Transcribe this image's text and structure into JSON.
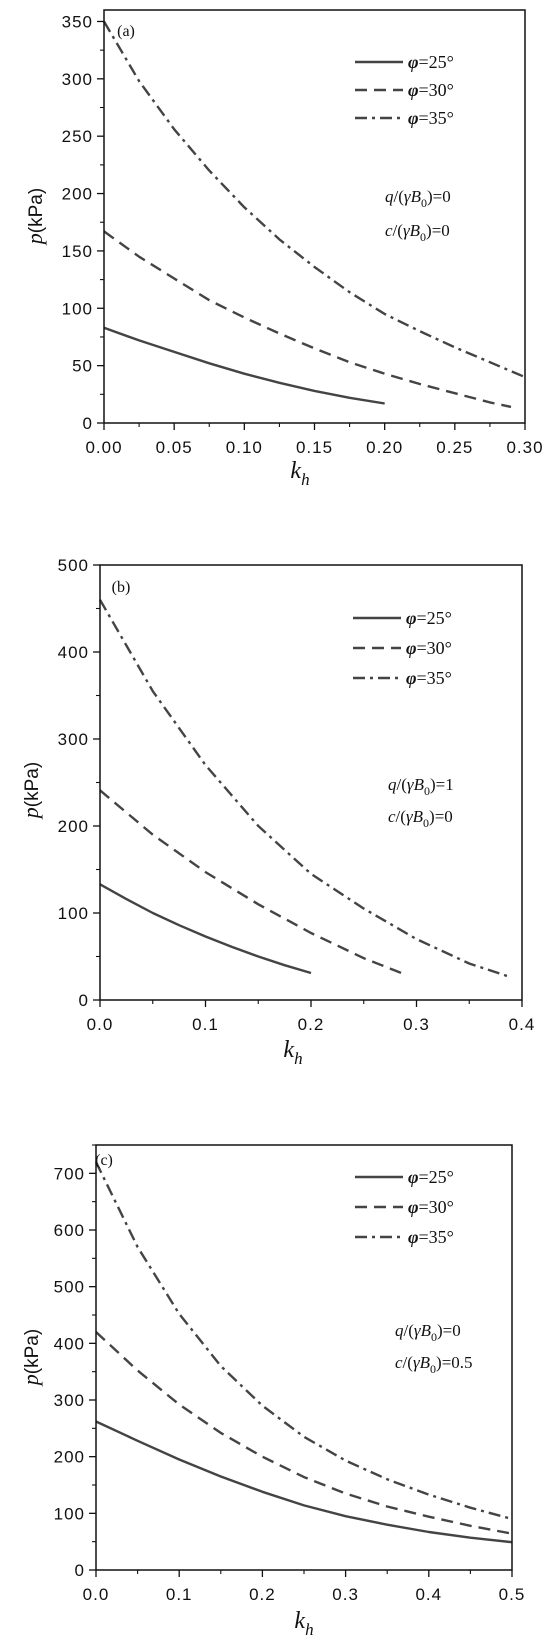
{
  "chart_data": [
    {
      "type": "line",
      "panel_label": "(a)",
      "xlabel": "k_h",
      "ylabel": "p(kPa)",
      "xlim": [
        0,
        0.3
      ],
      "ylim": [
        0,
        360
      ],
      "xticks": [
        0,
        0.05,
        0.1,
        0.15,
        0.2,
        0.25,
        0.3
      ],
      "xtick_labels": [
        "0.00",
        "0.05",
        "0.10",
        "0.15",
        "0.20",
        "0.25",
        "0.30"
      ],
      "yticks": [
        0,
        50,
        100,
        150,
        200,
        250,
        300,
        350
      ],
      "ytick_labels": [
        "0",
        "50",
        "100",
        "150",
        "200",
        "250",
        "300",
        "350"
      ],
      "legend_position": "top-right",
      "annotations": [
        {
          "pre": "q/(",
          "gamma": "γ",
          "B": "B",
          "sub": "0",
          "post": ")=0"
        },
        {
          "pre": "c/(",
          "gamma": "γ",
          "B": "B",
          "sub": "0",
          "post": ")=0"
        }
      ],
      "series": [
        {
          "name": "φ=25°",
          "dash": "solid",
          "x": [
            0,
            0.025,
            0.05,
            0.075,
            0.1,
            0.125,
            0.15,
            0.175,
            0.2
          ],
          "y": [
            83,
            72,
            62,
            52,
            43,
            35,
            28,
            22,
            17
          ]
        },
        {
          "name": "φ=30°",
          "dash": "dashed",
          "x": [
            0,
            0.025,
            0.05,
            0.075,
            0.1,
            0.125,
            0.15,
            0.175,
            0.2,
            0.225,
            0.25,
            0.275,
            0.29
          ],
          "y": [
            167,
            145,
            126,
            107,
            92,
            78,
            65,
            53,
            43,
            34,
            26,
            18,
            14
          ]
        },
        {
          "name": "φ=35°",
          "dash": "dashdot",
          "x": [
            0,
            0.025,
            0.05,
            0.075,
            0.1,
            0.125,
            0.15,
            0.175,
            0.2,
            0.225,
            0.25,
            0.275,
            0.3
          ],
          "y": [
            350,
            298,
            256,
            220,
            188,
            160,
            136,
            114,
            95,
            80,
            66,
            53,
            40
          ]
        }
      ]
    },
    {
      "type": "line",
      "panel_label": "(b)",
      "xlabel": "k_h",
      "ylabel": "p(kPa)",
      "xlim": [
        0,
        0.4
      ],
      "ylim": [
        0,
        500
      ],
      "xticks": [
        0,
        0.1,
        0.2,
        0.3,
        0.4
      ],
      "xtick_labels": [
        "0.0",
        "0.1",
        "0.2",
        "0.3",
        "0.4"
      ],
      "yticks": [
        0,
        100,
        200,
        300,
        400,
        500
      ],
      "ytick_labels": [
        "0",
        "100",
        "200",
        "300",
        "400",
        "500"
      ],
      "legend_position": "top-right",
      "annotations": [
        {
          "pre": "q/(",
          "gamma": "γ",
          "B": "B",
          "sub": "0",
          "post": ")=1"
        },
        {
          "pre": "c/(",
          "gamma": "γ",
          "B": "B",
          "sub": "0",
          "post": ")=0"
        }
      ],
      "series": [
        {
          "name": "φ=25°",
          "dash": "solid",
          "x": [
            0,
            0.025,
            0.05,
            0.075,
            0.1,
            0.125,
            0.15,
            0.175,
            0.2
          ],
          "y": [
            133,
            116,
            100,
            86,
            73,
            61,
            50,
            40,
            31
          ]
        },
        {
          "name": "φ=30°",
          "dash": "dashed",
          "x": [
            0,
            0.05,
            0.1,
            0.15,
            0.2,
            0.25,
            0.29
          ],
          "y": [
            241,
            190,
            147,
            110,
            77,
            48,
            29
          ]
        },
        {
          "name": "φ=35°",
          "dash": "dashdot",
          "x": [
            0,
            0.05,
            0.1,
            0.15,
            0.2,
            0.25,
            0.3,
            0.35,
            0.39
          ],
          "y": [
            460,
            355,
            270,
            200,
            145,
            105,
            70,
            42,
            26
          ]
        }
      ]
    },
    {
      "type": "line",
      "panel_label": "(c)",
      "xlabel": "k_h",
      "ylabel": "p(kPa)",
      "xlim": [
        0,
        0.5
      ],
      "ylim": [
        0,
        750
      ],
      "xticks": [
        0,
        0.1,
        0.2,
        0.3,
        0.4,
        0.5
      ],
      "xtick_labels": [
        "0.0",
        "0.1",
        "0.2",
        "0.3",
        "0.4",
        "0.5"
      ],
      "yticks": [
        0,
        100,
        200,
        300,
        400,
        500,
        600,
        700
      ],
      "ytick_labels": [
        "0",
        "100",
        "200",
        "300",
        "400",
        "500",
        "600",
        "700"
      ],
      "legend_position": "top-right",
      "annotations": [
        {
          "pre": "q/(",
          "gamma": "γ",
          "B": "B",
          "sub": "0",
          "post": ")=0"
        },
        {
          "pre": "c/(",
          "gamma": "γ",
          "B": "B",
          "sub": "0",
          "post": ")=0.5"
        }
      ],
      "series": [
        {
          "name": "φ=25°",
          "dash": "solid",
          "x": [
            0,
            0.05,
            0.1,
            0.15,
            0.2,
            0.25,
            0.3,
            0.35,
            0.4,
            0.45,
            0.5
          ],
          "y": [
            262,
            228,
            195,
            165,
            138,
            114,
            95,
            80,
            67,
            57,
            49
          ]
        },
        {
          "name": "φ=30°",
          "dash": "dashed",
          "x": [
            0,
            0.05,
            0.1,
            0.15,
            0.2,
            0.25,
            0.3,
            0.35,
            0.4,
            0.45,
            0.5
          ],
          "y": [
            420,
            352,
            292,
            242,
            200,
            164,
            135,
            112,
            94,
            78,
            64
          ]
        },
        {
          "name": "φ=35°",
          "dash": "dashdot",
          "x": [
            0,
            0.05,
            0.1,
            0.15,
            0.2,
            0.25,
            0.3,
            0.35,
            0.4,
            0.45,
            0.5
          ],
          "y": [
            720,
            570,
            452,
            360,
            290,
            235,
            193,
            160,
            133,
            110,
            90
          ]
        }
      ]
    }
  ]
}
